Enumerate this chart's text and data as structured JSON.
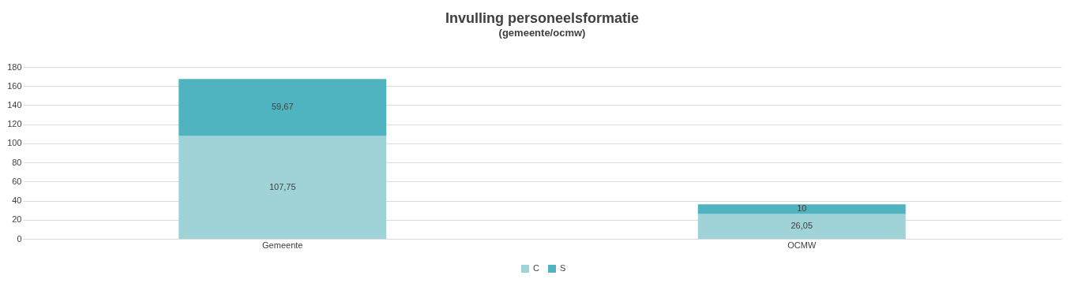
{
  "chart_data": {
    "type": "bar",
    "title": "Invulling personeelsformatie",
    "subtitle": "(gemeente/ocmw)",
    "categories": [
      "Gemeente",
      "OCMW"
    ],
    "stacked": true,
    "series": [
      {
        "name": "C",
        "color": "#9fd3d8",
        "values": [
          107.75,
          26.05
        ],
        "value_labels": [
          "107,75",
          "26,05"
        ]
      },
      {
        "name": "S",
        "color": "#4fb4c0",
        "values": [
          59.67,
          10
        ],
        "value_labels": [
          "59,67",
          "10"
        ]
      }
    ],
    "ylim": [
      0,
      180
    ],
    "yticks": [
      0,
      20,
      40,
      60,
      80,
      100,
      120,
      140,
      160,
      180
    ],
    "grid": "y",
    "legend": "bottom"
  }
}
